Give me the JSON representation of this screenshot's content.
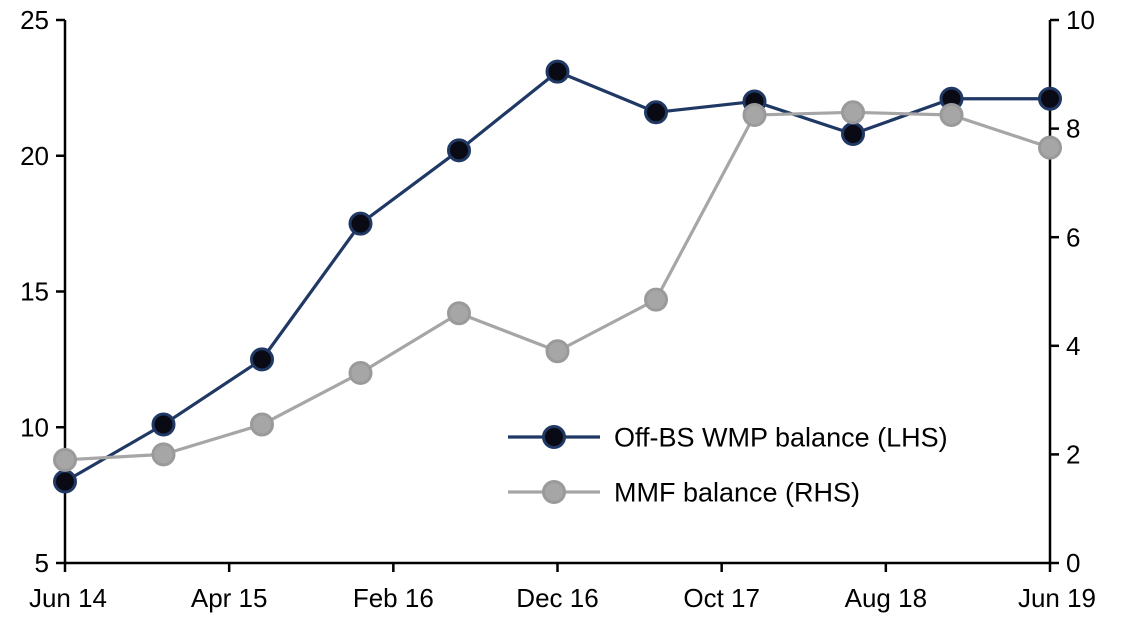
{
  "chart_data": {
    "type": "line",
    "title": "",
    "x_unit": "months since Jun 14",
    "x_points": [
      0,
      6,
      12,
      18,
      24,
      30,
      36,
      42,
      48,
      54,
      60
    ],
    "x_ticks": [
      {
        "month": 0,
        "label": "Jun 14"
      },
      {
        "month": 10,
        "label": "Apr 15"
      },
      {
        "month": 20,
        "label": "Feb 16"
      },
      {
        "month": 30,
        "label": "Dec 16"
      },
      {
        "month": 40,
        "label": "Oct 17"
      },
      {
        "month": 50,
        "label": "Aug 18"
      },
      {
        "month": 60,
        "label": "Jun 19"
      }
    ],
    "left_axis": {
      "min": 5,
      "max": 25,
      "ticks": [
        5,
        10,
        15,
        20,
        25
      ]
    },
    "right_axis": {
      "min": 0,
      "max": 10,
      "ticks": [
        0,
        2,
        4,
        6,
        8,
        10
      ]
    },
    "series": [
      {
        "name": "Off-BS WMP balance (LHS)",
        "axis": "left",
        "line_color": "#1f3864",
        "marker_fill": "#0a0a14",
        "marker_stroke": "#1f3864",
        "values": [
          8.0,
          10.1,
          12.5,
          17.5,
          20.2,
          23.1,
          21.6,
          22.0,
          20.8,
          22.1,
          22.1
        ]
      },
      {
        "name": "MMF balance (RHS)",
        "axis": "right",
        "line_color": "#a6a6a6",
        "marker_fill": "#a6a6a6",
        "marker_stroke": "#9a9a9a",
        "values": [
          1.9,
          2.0,
          2.55,
          3.5,
          4.6,
          3.9,
          4.85,
          8.25,
          8.3,
          8.25,
          7.65
        ]
      }
    ],
    "legend": {
      "position": "inside-center-bottom",
      "entries": [
        "Off-BS WMP balance (LHS)",
        "MMF balance (RHS)"
      ]
    },
    "grid": false,
    "axis_color": "#000000"
  }
}
